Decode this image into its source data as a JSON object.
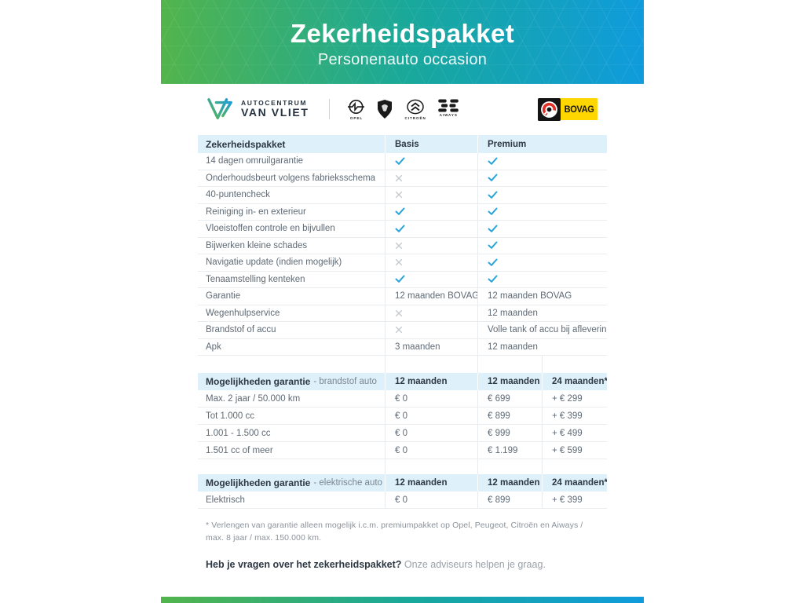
{
  "banner": {
    "title": "Zekerheidspakket",
    "subtitle": "Personenauto occasion"
  },
  "logos": {
    "dealer": {
      "line1": "AUTOCENTRUM",
      "line2": "VAN VLIET"
    },
    "brands": [
      "OPEL",
      "PEUGEOT",
      "CITROËN",
      "AIWAYS"
    ],
    "bovag_label": "BOVAG"
  },
  "colors": {
    "gradient_start": "#52b44c",
    "gradient_mid": "#18a89c",
    "gradient_end": "#0f9bdc",
    "table_header_bg": "#def0f9",
    "check": "#2aa3d8",
    "cross": "#c6cbd0",
    "bovag_yellow": "#ffd600",
    "bovag_red": "#e03127"
  },
  "tables": [
    {
      "header": {
        "title": "Zekerheidspakket",
        "subtitle": "",
        "cols": [
          "Basis",
          "Premium"
        ]
      },
      "rows": [
        {
          "label": "14 dagen omruilgarantie",
          "cells": [
            {
              "type": "check"
            },
            {
              "type": "check"
            }
          ]
        },
        {
          "label": "Onderhoudsbeurt volgens fabrieksschema",
          "cells": [
            {
              "type": "cross"
            },
            {
              "type": "check"
            }
          ]
        },
        {
          "label": "40-puntencheck",
          "cells": [
            {
              "type": "cross"
            },
            {
              "type": "check"
            }
          ]
        },
        {
          "label": "Reiniging in- en exterieur",
          "cells": [
            {
              "type": "check"
            },
            {
              "type": "check"
            }
          ]
        },
        {
          "label": "Vloeistoffen controle en bijvullen",
          "cells": [
            {
              "type": "check"
            },
            {
              "type": "check"
            }
          ]
        },
        {
          "label": "Bijwerken kleine schades",
          "cells": [
            {
              "type": "cross"
            },
            {
              "type": "check"
            }
          ]
        },
        {
          "label": "Navigatie update (indien mogelijk)",
          "cells": [
            {
              "type": "cross"
            },
            {
              "type": "check"
            }
          ]
        },
        {
          "label": "Tenaamstelling kenteken",
          "cells": [
            {
              "type": "check"
            },
            {
              "type": "check"
            }
          ]
        },
        {
          "label": "Garantie",
          "cells": [
            {
              "type": "text",
              "value": "12 maanden BOVAG"
            },
            {
              "type": "text",
              "value": "12 maanden BOVAG"
            }
          ]
        },
        {
          "label": "Wegenhulpservice",
          "cells": [
            {
              "type": "cross"
            },
            {
              "type": "text",
              "value": "12 maanden"
            }
          ]
        },
        {
          "label": "Brandstof of accu",
          "cells": [
            {
              "type": "cross"
            },
            {
              "type": "text",
              "value": "Volle tank of accu bij aflevering"
            }
          ]
        },
        {
          "label": "Apk",
          "cells": [
            {
              "type": "text",
              "value": "3 maanden"
            },
            {
              "type": "text",
              "value": "12 maanden"
            }
          ]
        }
      ]
    },
    {
      "header": {
        "title": "Mogelijkheden garantie",
        "subtitle": "- brandstof auto",
        "cols": [
          "12 maanden",
          "12 maanden",
          "24 maanden*"
        ]
      },
      "rows": [
        {
          "label": "Max. 2 jaar / 50.000 km",
          "cells": [
            {
              "type": "text",
              "value": "€ 0"
            },
            {
              "type": "text",
              "value": "€ 699"
            },
            {
              "type": "text",
              "value": "+ € 299"
            }
          ]
        },
        {
          "label": "Tot 1.000 cc",
          "cells": [
            {
              "type": "text",
              "value": "€ 0"
            },
            {
              "type": "text",
              "value": "€ 899"
            },
            {
              "type": "text",
              "value": "+ € 399"
            }
          ]
        },
        {
          "label": "1.001 - 1.500 cc",
          "cells": [
            {
              "type": "text",
              "value": "€ 0"
            },
            {
              "type": "text",
              "value": "€ 999"
            },
            {
              "type": "text",
              "value": "+ € 499"
            }
          ]
        },
        {
          "label": "1.501 cc of meer",
          "cells": [
            {
              "type": "text",
              "value": "€ 0"
            },
            {
              "type": "text",
              "value": "€ 1.199"
            },
            {
              "type": "text",
              "value": "+ € 599"
            }
          ]
        }
      ]
    },
    {
      "header": {
        "title": "Mogelijkheden garantie",
        "subtitle": "- elektrische auto",
        "cols": [
          "12 maanden",
          "12 maanden",
          "24 maanden*"
        ]
      },
      "rows": [
        {
          "label": "Elektrisch",
          "cells": [
            {
              "type": "text",
              "value": "€ 0"
            },
            {
              "type": "text",
              "value": "€ 899"
            },
            {
              "type": "text",
              "value": "+ € 399"
            }
          ]
        }
      ]
    }
  ],
  "footnote": "* Verlengen van garantie alleen mogelijk i.c.m. premiumpakket op Opel, Peugeot, Citroën en Aiways / max. 8 jaar / max. 150.000 km.",
  "question": {
    "bold": "Heb je vragen over het zekerheidspakket?",
    "rest": " Onze adviseurs helpen je graag."
  }
}
